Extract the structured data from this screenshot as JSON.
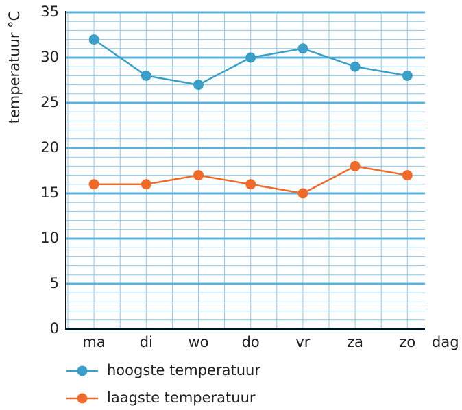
{
  "chart_data": {
    "type": "line",
    "y_label": "temperatuur °C",
    "x_label": "dag",
    "categories": [
      "ma",
      "di",
      "wo",
      "do",
      "vr",
      "za",
      "zo"
    ],
    "series": [
      {
        "name": "hoogste temperatuur",
        "color": "#3a9fc9",
        "values": [
          32,
          28,
          27,
          30,
          31,
          29,
          28
        ]
      },
      {
        "name": "laagste temperatuur",
        "color": "#f06a2a",
        "values": [
          16,
          16,
          17,
          16,
          15,
          18,
          17
        ]
      }
    ],
    "ylim": [
      0,
      35
    ],
    "yticks": [
      0,
      5,
      10,
      15,
      20,
      25,
      30,
      35
    ],
    "minor_yticks": [
      1,
      2,
      3,
      4,
      6,
      7,
      8,
      9,
      11,
      12,
      13,
      14,
      16,
      17,
      18,
      19,
      21,
      22,
      23,
      24,
      26,
      27,
      28,
      29,
      31,
      32,
      33,
      34
    ],
    "grid": true
  }
}
